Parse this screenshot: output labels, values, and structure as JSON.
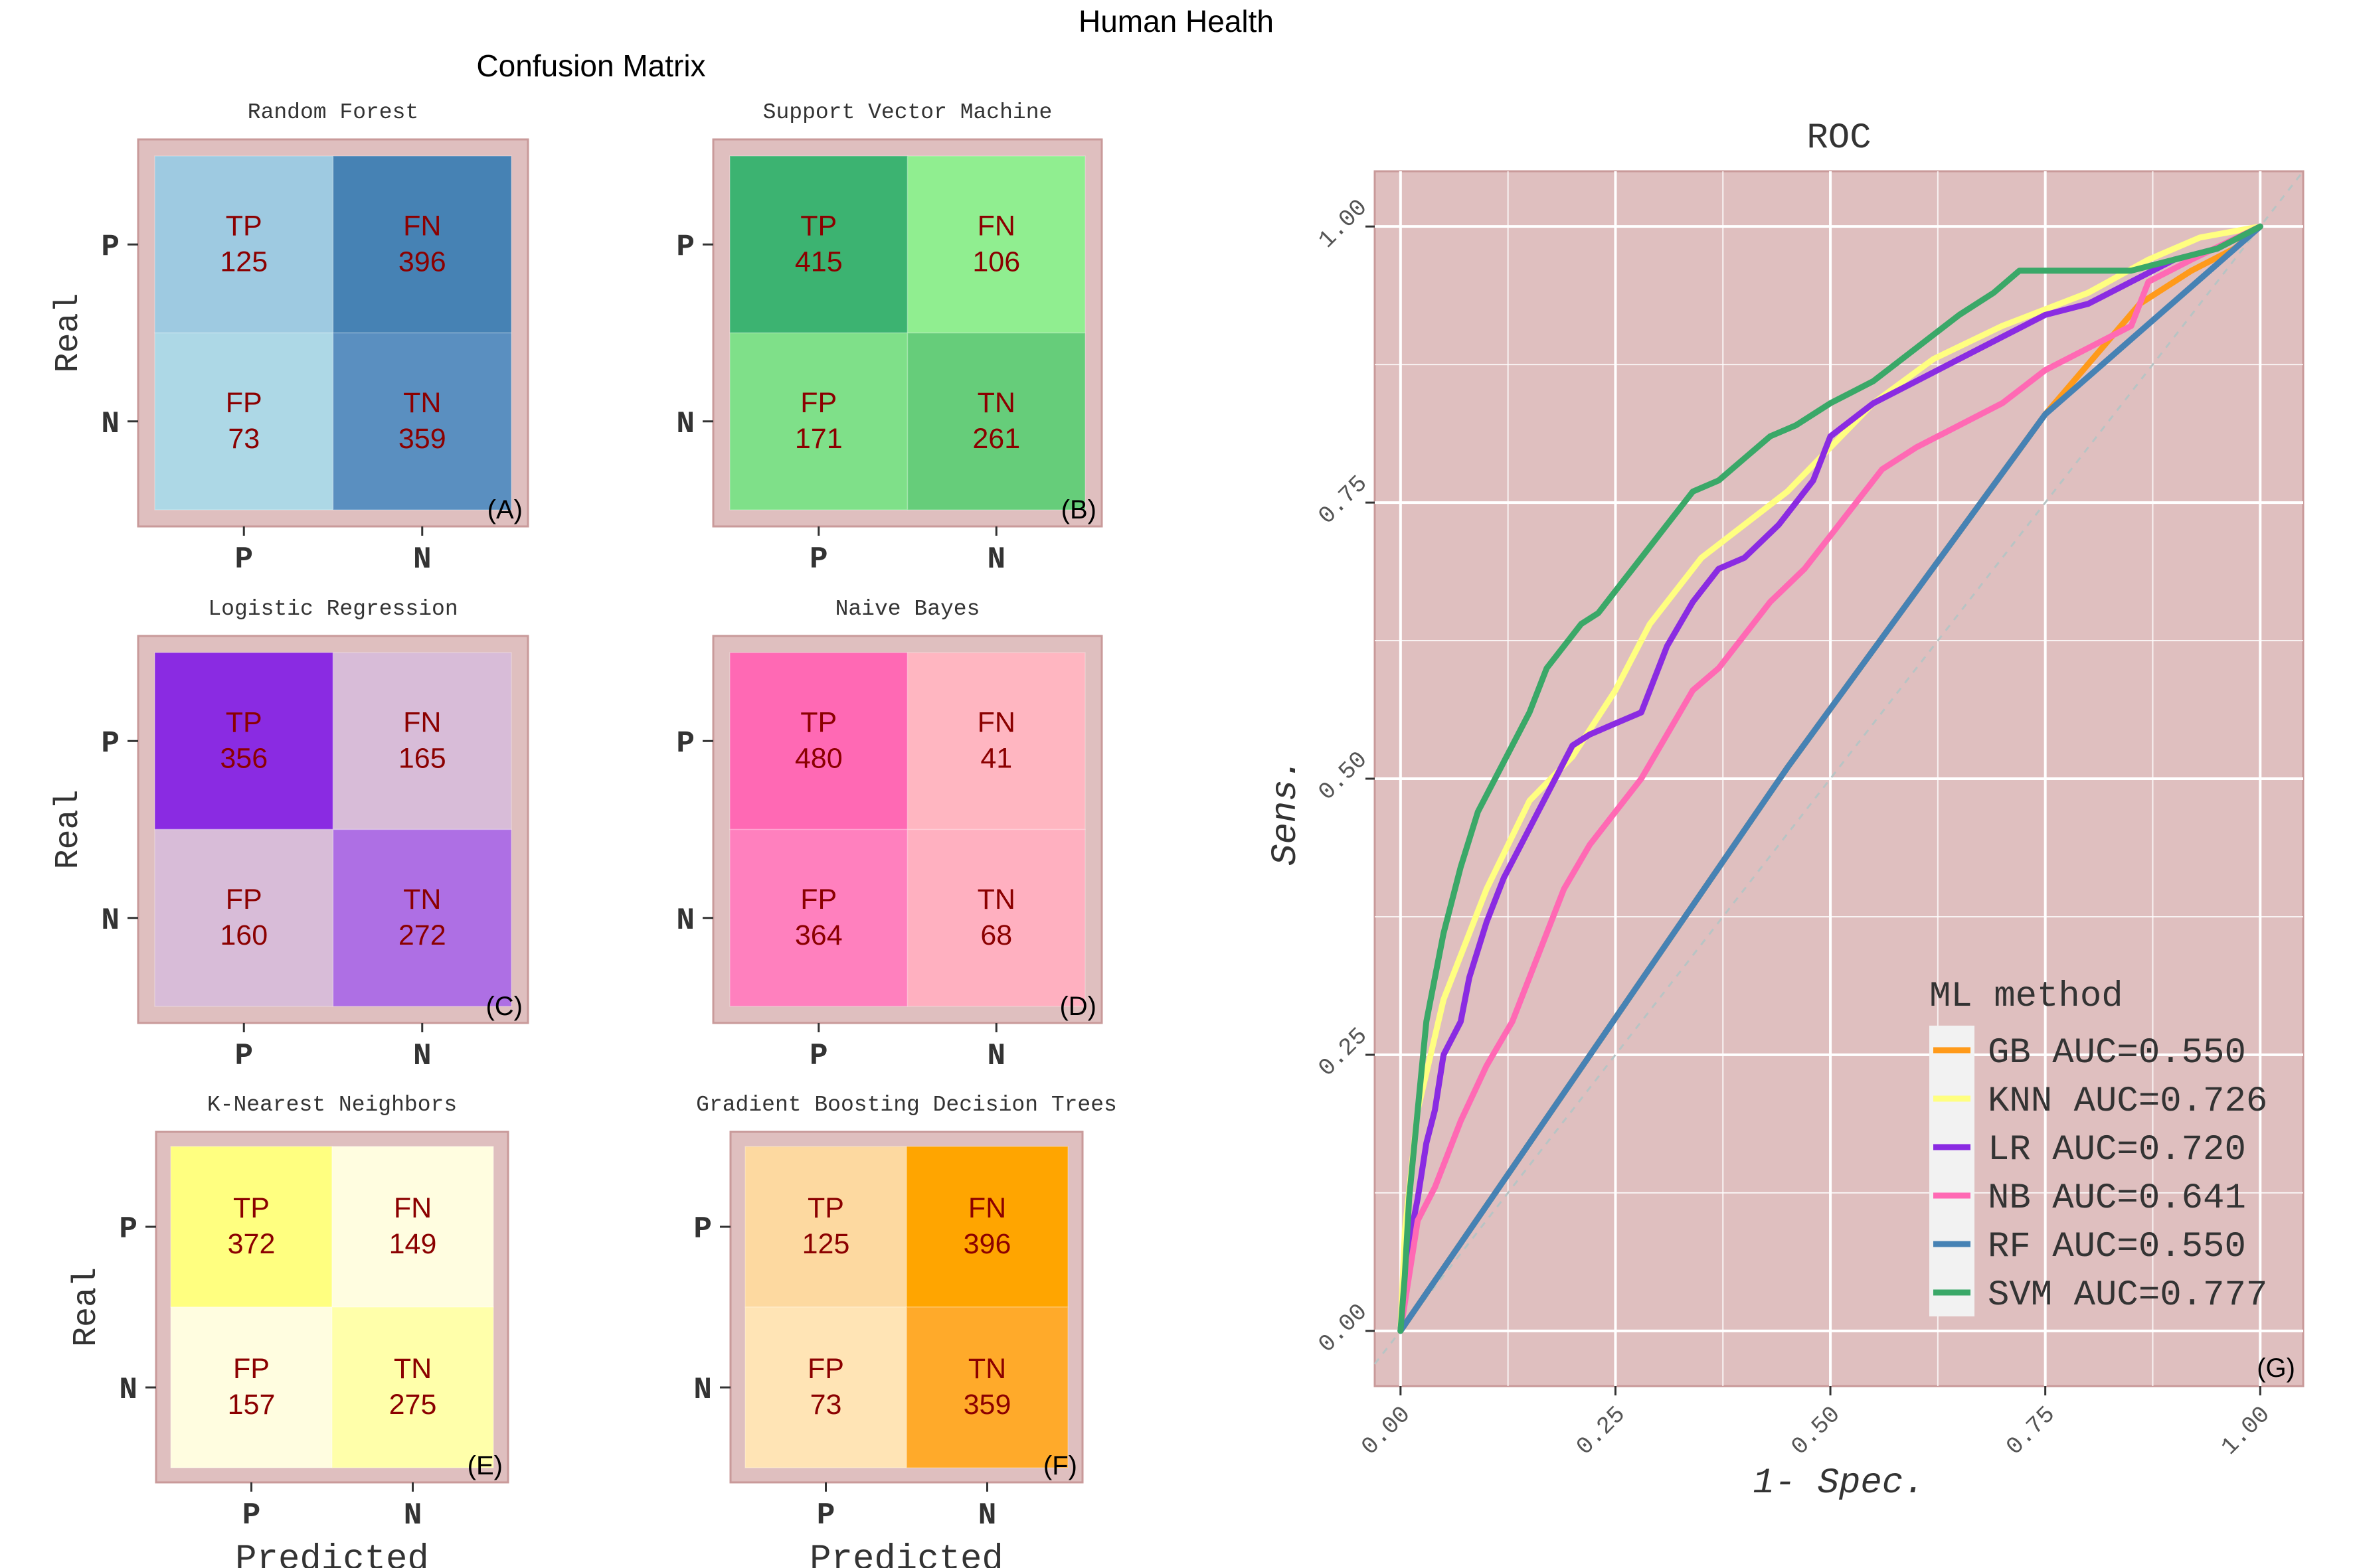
{
  "figure_title": "Human Health",
  "cm_section_title": "Confusion Matrix",
  "colors": {
    "panel_bg": "#dfbfbf",
    "panel_border": "#c99a9a",
    "cell_text": "#8b0000",
    "grid": "#ffffff",
    "diagonal": "#b8c4c4"
  },
  "chart_data": [
    {
      "type": "heatmap",
      "title": "Random Forest",
      "panel_label": "(A)",
      "ylabel": "Real",
      "xlabel": "",
      "x_ticks": [
        "P",
        "N"
      ],
      "y_ticks": [
        "P",
        "N"
      ],
      "cells": [
        {
          "label": "TP",
          "value": 125,
          "color": "#9ecae1"
        },
        {
          "label": "FN",
          "value": 396,
          "color": "#4682b4"
        },
        {
          "label": "FP",
          "value": 73,
          "color": "#add8e6"
        },
        {
          "label": "TN",
          "value": 359,
          "color": "#5a8fc0"
        }
      ]
    },
    {
      "type": "heatmap",
      "title": "Support Vector Machine",
      "panel_label": "(B)",
      "ylabel": "",
      "xlabel": "",
      "x_ticks": [
        "P",
        "N"
      ],
      "y_ticks": [
        "P",
        "N"
      ],
      "cells": [
        {
          "label": "TP",
          "value": 415,
          "color": "#3cb371"
        },
        {
          "label": "FN",
          "value": 106,
          "color": "#90ee90"
        },
        {
          "label": "FP",
          "value": 171,
          "color": "#7fe089"
        },
        {
          "label": "TN",
          "value": 261,
          "color": "#66cd7a"
        }
      ]
    },
    {
      "type": "heatmap",
      "title": "Logistic Regression",
      "panel_label": "(C)",
      "ylabel": "Real",
      "xlabel": "",
      "x_ticks": [
        "P",
        "N"
      ],
      "y_ticks": [
        "P",
        "N"
      ],
      "cells": [
        {
          "label": "TP",
          "value": 356,
          "color": "#8a2be2"
        },
        {
          "label": "FN",
          "value": 165,
          "color": "#d8bcd8"
        },
        {
          "label": "FP",
          "value": 160,
          "color": "#d8bcd8"
        },
        {
          "label": "TN",
          "value": 272,
          "color": "#ae6fe4"
        }
      ]
    },
    {
      "type": "heatmap",
      "title": "Naive Bayes",
      "panel_label": "(D)",
      "ylabel": "",
      "xlabel": "",
      "x_ticks": [
        "P",
        "N"
      ],
      "y_ticks": [
        "P",
        "N"
      ],
      "cells": [
        {
          "label": "TP",
          "value": 480,
          "color": "#ff69b4"
        },
        {
          "label": "FN",
          "value": 41,
          "color": "#ffb6c1"
        },
        {
          "label": "FP",
          "value": 364,
          "color": "#ff80be"
        },
        {
          "label": "TN",
          "value": 68,
          "color": "#ffb0c0"
        }
      ]
    },
    {
      "type": "heatmap",
      "title": "K-Nearest Neighbors",
      "panel_label": "(E)",
      "ylabel": "Real",
      "xlabel": "Predicted",
      "x_ticks": [
        "P",
        "N"
      ],
      "y_ticks": [
        "P",
        "N"
      ],
      "cells": [
        {
          "label": "TP",
          "value": 372,
          "color": "#ffff80"
        },
        {
          "label": "FN",
          "value": 149,
          "color": "#fffde0"
        },
        {
          "label": "FP",
          "value": 157,
          "color": "#fffde0"
        },
        {
          "label": "TN",
          "value": 275,
          "color": "#ffffaa"
        }
      ]
    },
    {
      "type": "heatmap",
      "title": "Gradient Boosting Decision Trees",
      "panel_label": "(F)",
      "ylabel": "",
      "xlabel": "Predicted",
      "x_ticks": [
        "P",
        "N"
      ],
      "y_ticks": [
        "P",
        "N"
      ],
      "cells": [
        {
          "label": "TP",
          "value": 125,
          "color": "#fdd9a0"
        },
        {
          "label": "FN",
          "value": 396,
          "color": "#ffa500"
        },
        {
          "label": "FP",
          "value": 73,
          "color": "#ffe4b5"
        },
        {
          "label": "TN",
          "value": 359,
          "color": "#ffaa2a"
        }
      ]
    },
    {
      "type": "line",
      "title": "ROC",
      "panel_label": "(G)",
      "xlabel": "1- Spec.",
      "ylabel": "Sens.",
      "xlim": [
        -0.03,
        1.05
      ],
      "ylim": [
        -0.05,
        1.05
      ],
      "x_ticks": [
        "0.00",
        "0.25",
        "0.50",
        "0.75",
        "1.00"
      ],
      "y_ticks": [
        "0.00",
        "0.25",
        "0.50",
        "0.75",
        "1.00"
      ],
      "diagonal_reference": true,
      "legend_title": "ML method",
      "legend_position": "bottom-right (inside)",
      "series": [
        {
          "name": "GB",
          "legend": "GB AUC=0.550",
          "color": "#ff9a1a",
          "points": [
            [
              0,
              0
            ],
            [
              0.45,
              0.51
            ],
            [
              0.75,
              0.83
            ],
            [
              0.86,
              0.93
            ],
            [
              0.92,
              0.96
            ],
            [
              0.97,
              0.98
            ],
            [
              1,
              1
            ]
          ]
        },
        {
          "name": "KNN",
          "legend": "KNN AUC=0.726",
          "color": "#ffff80",
          "points": [
            [
              0,
              0
            ],
            [
              0.005,
              0.09
            ],
            [
              0.02,
              0.2
            ],
            [
              0.05,
              0.3
            ],
            [
              0.1,
              0.4
            ],
            [
              0.15,
              0.48
            ],
            [
              0.2,
              0.52
            ],
            [
              0.25,
              0.58
            ],
            [
              0.29,
              0.64
            ],
            [
              0.35,
              0.7
            ],
            [
              0.45,
              0.76
            ],
            [
              0.55,
              0.84
            ],
            [
              0.62,
              0.88
            ],
            [
              0.7,
              0.91
            ],
            [
              0.8,
              0.94
            ],
            [
              0.87,
              0.97
            ],
            [
              0.93,
              0.99
            ],
            [
              1,
              1
            ]
          ]
        },
        {
          "name": "LR",
          "legend": "LR AUC=0.720",
          "color": "#8a2be2",
          "points": [
            [
              0,
              0
            ],
            [
              0.01,
              0.08
            ],
            [
              0.02,
              0.12
            ],
            [
              0.03,
              0.17
            ],
            [
              0.04,
              0.2
            ],
            [
              0.05,
              0.25
            ],
            [
              0.07,
              0.28
            ],
            [
              0.08,
              0.32
            ],
            [
              0.1,
              0.37
            ],
            [
              0.12,
              0.41
            ],
            [
              0.14,
              0.44
            ],
            [
              0.16,
              0.47
            ],
            [
              0.18,
              0.5
            ],
            [
              0.2,
              0.53
            ],
            [
              0.22,
              0.54
            ],
            [
              0.25,
              0.55
            ],
            [
              0.28,
              0.56
            ],
            [
              0.31,
              0.62
            ],
            [
              0.34,
              0.66
            ],
            [
              0.37,
              0.69
            ],
            [
              0.4,
              0.7
            ],
            [
              0.44,
              0.73
            ],
            [
              0.48,
              0.77
            ],
            [
              0.5,
              0.81
            ],
            [
              0.55,
              0.84
            ],
            [
              0.6,
              0.86
            ],
            [
              0.65,
              0.88
            ],
            [
              0.7,
              0.9
            ],
            [
              0.75,
              0.92
            ],
            [
              0.8,
              0.93
            ],
            [
              0.85,
              0.95
            ],
            [
              0.9,
              0.97
            ],
            [
              0.95,
              0.98
            ],
            [
              1,
              1
            ]
          ]
        },
        {
          "name": "NB",
          "legend": "NB AUC=0.641",
          "color": "#ff69b4",
          "points": [
            [
              0,
              0
            ],
            [
              0.02,
              0.1
            ],
            [
              0.04,
              0.13
            ],
            [
              0.07,
              0.19
            ],
            [
              0.1,
              0.24
            ],
            [
              0.13,
              0.28
            ],
            [
              0.16,
              0.34
            ],
            [
              0.19,
              0.4
            ],
            [
              0.22,
              0.44
            ],
            [
              0.25,
              0.47
            ],
            [
              0.28,
              0.5
            ],
            [
              0.31,
              0.54
            ],
            [
              0.34,
              0.58
            ],
            [
              0.37,
              0.6
            ],
            [
              0.4,
              0.63
            ],
            [
              0.43,
              0.66
            ],
            [
              0.47,
              0.69
            ],
            [
              0.5,
              0.72
            ],
            [
              0.53,
              0.75
            ],
            [
              0.56,
              0.78
            ],
            [
              0.6,
              0.8
            ],
            [
              0.65,
              0.82
            ],
            [
              0.7,
              0.84
            ],
            [
              0.75,
              0.87
            ],
            [
              0.8,
              0.89
            ],
            [
              0.85,
              0.91
            ],
            [
              0.87,
              0.95
            ],
            [
              0.92,
              0.97
            ],
            [
              1,
              1
            ]
          ]
        },
        {
          "name": "RF",
          "legend": "RF AUC=0.550",
          "color": "#4682b4",
          "points": [
            [
              0,
              0
            ],
            [
              0.45,
              0.51
            ],
            [
              0.75,
              0.83
            ],
            [
              1,
              1
            ]
          ]
        },
        {
          "name": "SVM",
          "legend": "SVM AUC=0.777",
          "color": "#3aa868",
          "points": [
            [
              0,
              0
            ],
            [
              0.005,
              0.05
            ],
            [
              0.01,
              0.12
            ],
            [
              0.02,
              0.2
            ],
            [
              0.03,
              0.28
            ],
            [
              0.04,
              0.32
            ],
            [
              0.05,
              0.36
            ],
            [
              0.07,
              0.42
            ],
            [
              0.09,
              0.47
            ],
            [
              0.11,
              0.5
            ],
            [
              0.13,
              0.53
            ],
            [
              0.15,
              0.56
            ],
            [
              0.17,
              0.6
            ],
            [
              0.19,
              0.62
            ],
            [
              0.21,
              0.64
            ],
            [
              0.23,
              0.65
            ],
            [
              0.25,
              0.67
            ],
            [
              0.28,
              0.7
            ],
            [
              0.31,
              0.73
            ],
            [
              0.34,
              0.76
            ],
            [
              0.37,
              0.77
            ],
            [
              0.4,
              0.79
            ],
            [
              0.43,
              0.81
            ],
            [
              0.46,
              0.82
            ],
            [
              0.5,
              0.84
            ],
            [
              0.55,
              0.86
            ],
            [
              0.6,
              0.89
            ],
            [
              0.65,
              0.92
            ],
            [
              0.69,
              0.94
            ],
            [
              0.72,
              0.96
            ],
            [
              0.75,
              0.96
            ],
            [
              0.85,
              0.96
            ],
            [
              0.9,
              0.97
            ],
            [
              0.95,
              0.98
            ],
            [
              1,
              1
            ]
          ]
        }
      ]
    }
  ]
}
